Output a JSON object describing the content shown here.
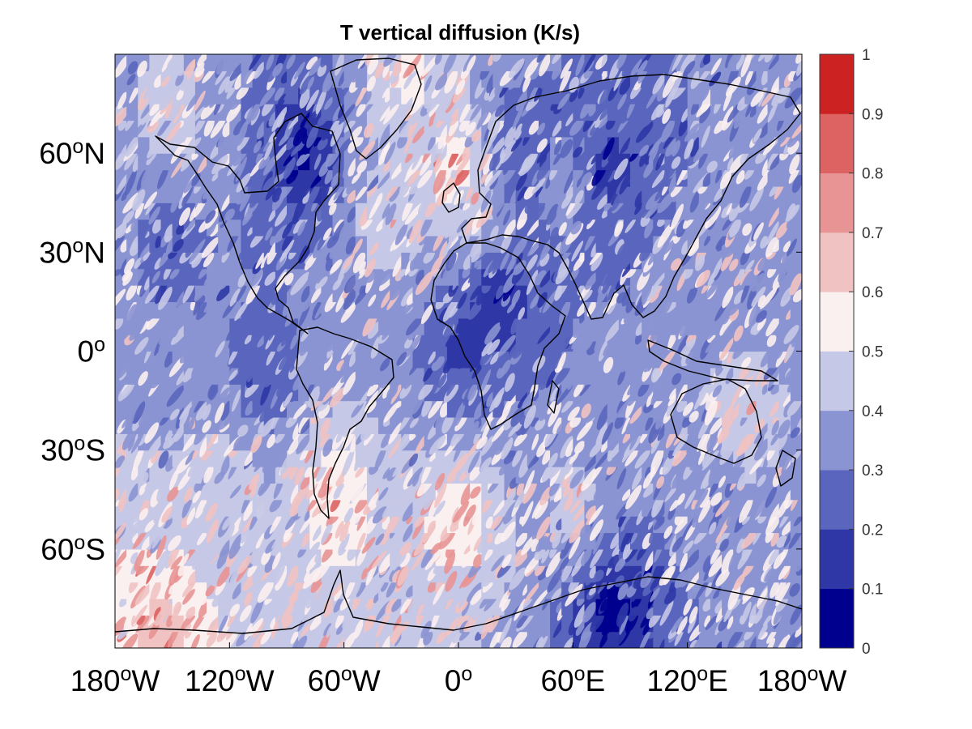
{
  "title": "T vertical diffusion (K/s)",
  "map": {
    "projection": "equirectangular",
    "lon_range": [
      -180,
      180
    ],
    "lat_range": [
      -90,
      90
    ],
    "background_level": 0.05,
    "coastlines": true
  },
  "x_ticks": [
    {
      "value": -180,
      "num": "180",
      "sup": "o",
      "suffix": "W"
    },
    {
      "value": -120,
      "num": "120",
      "sup": "o",
      "suffix": "W"
    },
    {
      "value": -60,
      "num": "60",
      "sup": "o",
      "suffix": "W"
    },
    {
      "value": 0,
      "num": "0",
      "sup": "o",
      "suffix": ""
    },
    {
      "value": 60,
      "num": "60",
      "sup": "o",
      "suffix": "E"
    },
    {
      "value": 120,
      "num": "120",
      "sup": "o",
      "suffix": "E"
    },
    {
      "value": 180,
      "num": "180",
      "sup": "o",
      "suffix": "W"
    }
  ],
  "y_ticks": [
    {
      "value": 60,
      "num": "60",
      "sup": "o",
      "suffix": "N"
    },
    {
      "value": 30,
      "num": "30",
      "sup": "o",
      "suffix": "N"
    },
    {
      "value": 0,
      "num": "0",
      "sup": "o",
      "suffix": ""
    },
    {
      "value": -30,
      "num": "30",
      "sup": "o",
      "suffix": "S"
    },
    {
      "value": -60,
      "num": "60",
      "sup": "o",
      "suffix": "S"
    }
  ],
  "colorbar": {
    "levels": [
      0,
      0.1,
      0.2,
      0.3,
      0.4,
      0.5,
      0.6,
      0.7,
      0.8,
      0.9,
      1
    ],
    "tick_labels": [
      "0",
      "0.1",
      "0.2",
      "0.3",
      "0.4",
      "0.5",
      "0.6",
      "0.7",
      "0.8",
      "0.9",
      "1"
    ],
    "colors": [
      "#00008f",
      "#2e37a5",
      "#5a66bd",
      "#8b94d2",
      "#c5c8e6",
      "#fbf0f0",
      "#f0c2c2",
      "#e89494",
      "#dd6363",
      "#cc2222"
    ]
  },
  "chart_data": {
    "type": "heatmap",
    "title": "T vertical diffusion (K/s)",
    "xlabel": "",
    "ylabel": "",
    "xlim": [
      -180,
      180
    ],
    "ylim": [
      -90,
      90
    ],
    "colorbar_range": [
      0,
      1
    ],
    "features": [
      {
        "lon": -80,
        "lat": 60,
        "value": 0.05
      },
      {
        "lon": -150,
        "lat": 70,
        "value": 0.45
      },
      {
        "lon": -25,
        "lat": 82,
        "value": 0.55
      },
      {
        "lon": -2,
        "lat": 54,
        "value": 0.65
      },
      {
        "lon": 30,
        "lat": 60,
        "value": 0.15
      },
      {
        "lon": 55,
        "lat": 52,
        "value": 0.35
      },
      {
        "lon": 80,
        "lat": 55,
        "value": 0.15
      },
      {
        "lon": 10,
        "lat": 42,
        "value": 0.45
      },
      {
        "lon": -40,
        "lat": 40,
        "value": 0.45
      },
      {
        "lon": -150,
        "lat": 35,
        "value": 0.25
      },
      {
        "lon": 20,
        "lat": 15,
        "value": 0.05
      },
      {
        "lon": 130,
        "lat": 10,
        "value": 0.35
      },
      {
        "lon": 135,
        "lat": -25,
        "value": 0.25
      },
      {
        "lon": 140,
        "lat": -20,
        "value": 0.6
      },
      {
        "lon": -65,
        "lat": -45,
        "value": 0.6
      },
      {
        "lon": 0,
        "lat": -50,
        "value": 0.6
      },
      {
        "lon": -120,
        "lat": -40,
        "value": 0.45
      },
      {
        "lon": 60,
        "lat": -45,
        "value": 0.45
      },
      {
        "lon": 80,
        "lat": -78,
        "value": 0.05
      },
      {
        "lon": -155,
        "lat": -88,
        "value": 0.65
      },
      {
        "lon": -100,
        "lat": -10,
        "value": 0.2
      },
      {
        "lon": 0,
        "lat": 0,
        "value": 0.15
      }
    ]
  }
}
